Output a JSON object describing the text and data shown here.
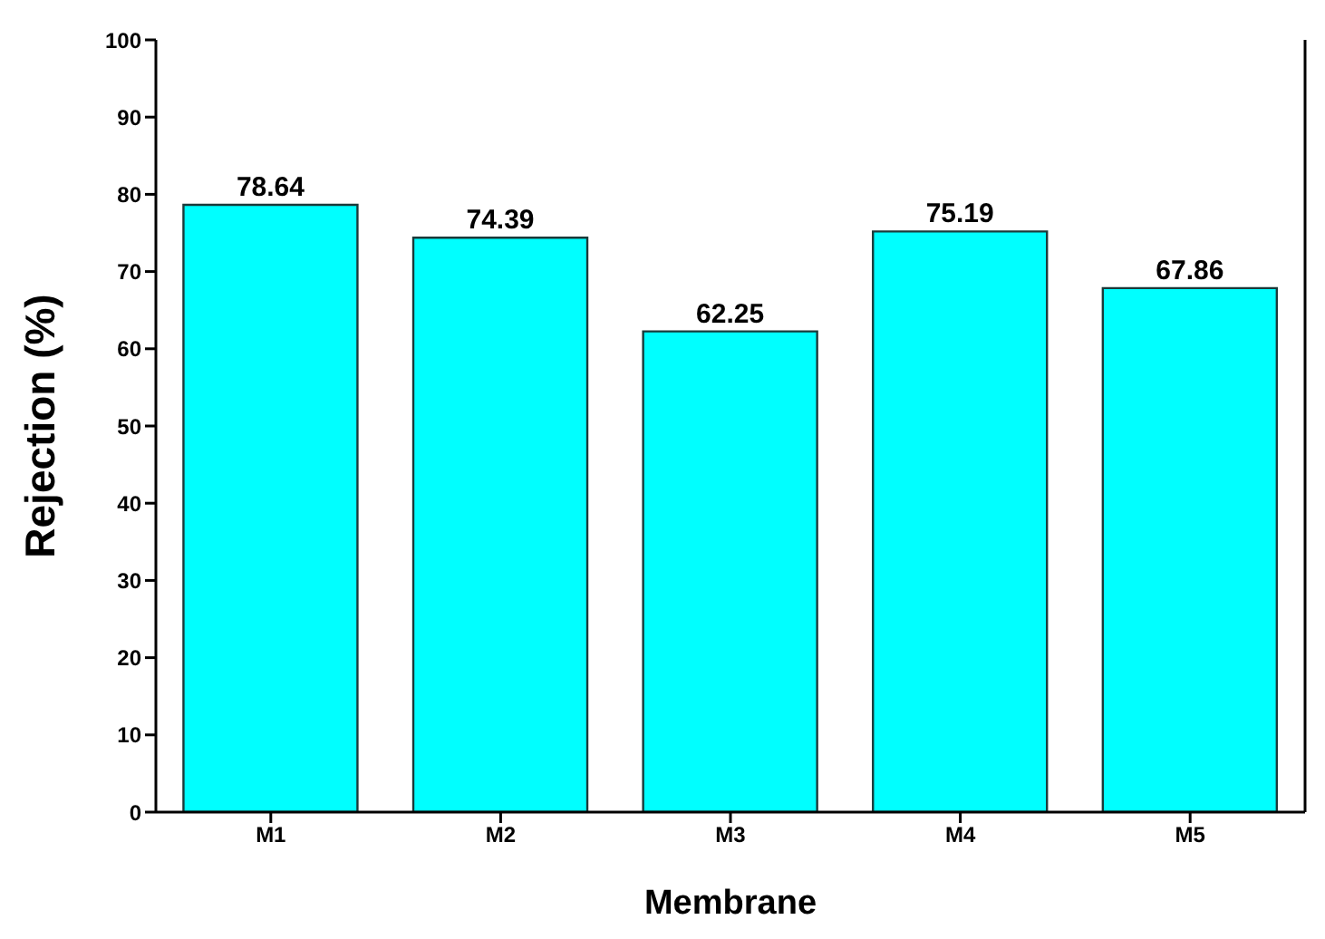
{
  "chart_data": {
    "type": "bar",
    "xlabel": "Membrane",
    "ylabel": "Rejection (%)",
    "categories": [
      "M1",
      "M2",
      "M3",
      "M4",
      "M5"
    ],
    "values": [
      78.64,
      74.39,
      62.25,
      75.19,
      67.86
    ],
    "color": "#00ffff",
    "ylim": [
      0,
      100
    ],
    "yticks": [
      0,
      10,
      20,
      30,
      40,
      50,
      60,
      70,
      80,
      90,
      100
    ],
    "data_labels": true,
    "grid": false,
    "legend": false
  }
}
